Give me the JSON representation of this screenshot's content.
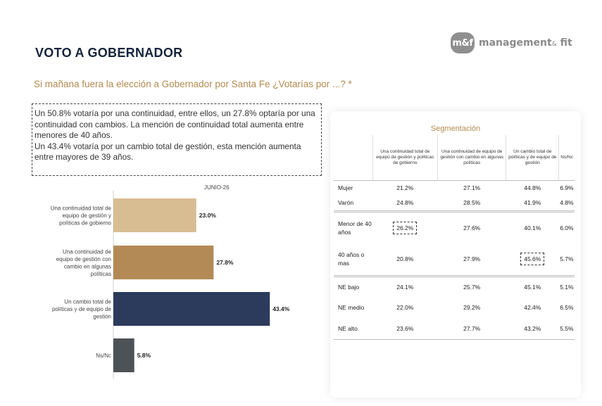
{
  "logo": {
    "mark": "m&f",
    "name": "management",
    "amp": "&",
    "fit": " fit"
  },
  "page_title": "VOTO A GOBERNADOR",
  "subtitle": "Si mañana fuera la elección a Gobernador por Santa Fe ¿Votarías por ...? *",
  "summary": {
    "line1": "Un 50.8% votaría por una continuidad, entre ellos, un 27.8% optaría por una continuidad con cambios. La mención de continuidad total aumenta entre menores de 40 años.",
    "line2": "Un 43.4% votaría por un cambio total de gestión, esta mención aumenta entre mayores de 39 años."
  },
  "chart_data": {
    "type": "bar",
    "orientation": "horizontal",
    "series_label": "JUNIO-26",
    "categories": [
      [
        "Una continuidad total de",
        "equipo de gestión y",
        "políticas de gobierno"
      ],
      [
        "Una continuidad de",
        "equipo de gestión con",
        "cambio en algunas",
        "políticas"
      ],
      [
        "Un cambio total de",
        "políticas y de equipo de",
        "gestión"
      ],
      [
        "Ns/Nc"
      ]
    ],
    "values": [
      23.0,
      27.8,
      43.4,
      5.8
    ],
    "value_labels": [
      "23.0%",
      "27.8%",
      "43.4%",
      "5.8%"
    ],
    "colors": [
      "#d9bd92",
      "#b38a56",
      "#2c3a5c",
      "#4d5256"
    ],
    "xlim": [
      0,
      50
    ]
  },
  "segmentation": {
    "title": "Segmentación",
    "headers": [
      "Una continuidad total de equipo de gestión y políticas de gobierno",
      "Una continuidad de equipo de gestión con cambio en algunas políticas",
      "Un cambio total de políticas y de equipo de gestión",
      "Ns/Nc"
    ],
    "rows": [
      {
        "label": "Mujer",
        "values": [
          "21.2%",
          "27.1%",
          "44.8%",
          "6.9%"
        ]
      },
      {
        "label": "Varón",
        "values": [
          "24.8%",
          "28.5%",
          "41.9%",
          "4.8%"
        ]
      },
      {
        "label": "Menor de 40 años",
        "values": [
          "26.2%",
          "27.6%",
          "40.1%",
          "6.0%"
        ]
      },
      {
        "label": "40 años o mas",
        "values": [
          "20.8%",
          "27.9%",
          "45.6%",
          "5.7%"
        ]
      },
      {
        "label": "NE bajo",
        "values": [
          "24.1%",
          "25.7%",
          "45.1%",
          "5.1%"
        ]
      },
      {
        "label": "NE medio",
        "values": [
          "22.0%",
          "29.2%",
          "42.4%",
          "6.5%"
        ]
      },
      {
        "label": "NE alto",
        "values": [
          "23.6%",
          "27.7%",
          "43.2%",
          "5.5%"
        ]
      }
    ]
  }
}
